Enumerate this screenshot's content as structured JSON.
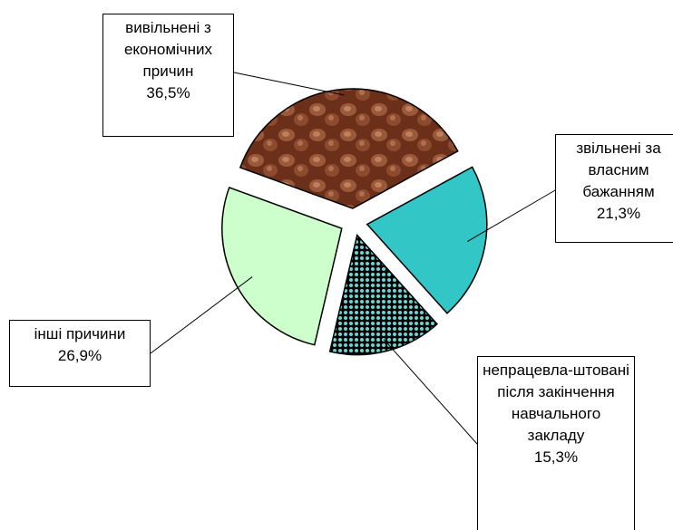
{
  "chart_data": {
    "type": "pie",
    "categories": [
      "вивільнені з економічних причин",
      "звільнені за власним бажанням",
      "непрацевла-штовані після закінчення навчального закладу",
      "інші причини"
    ],
    "values": [
      36.5,
      21.3,
      15.3,
      26.9
    ],
    "value_labels": [
      "36,5%",
      "21,3%",
      "15,3%",
      "26,9%"
    ],
    "colors": [
      "#7a3a22",
      "#33c6c6",
      "#2a8a8a",
      "#ccffcc"
    ]
  }
}
